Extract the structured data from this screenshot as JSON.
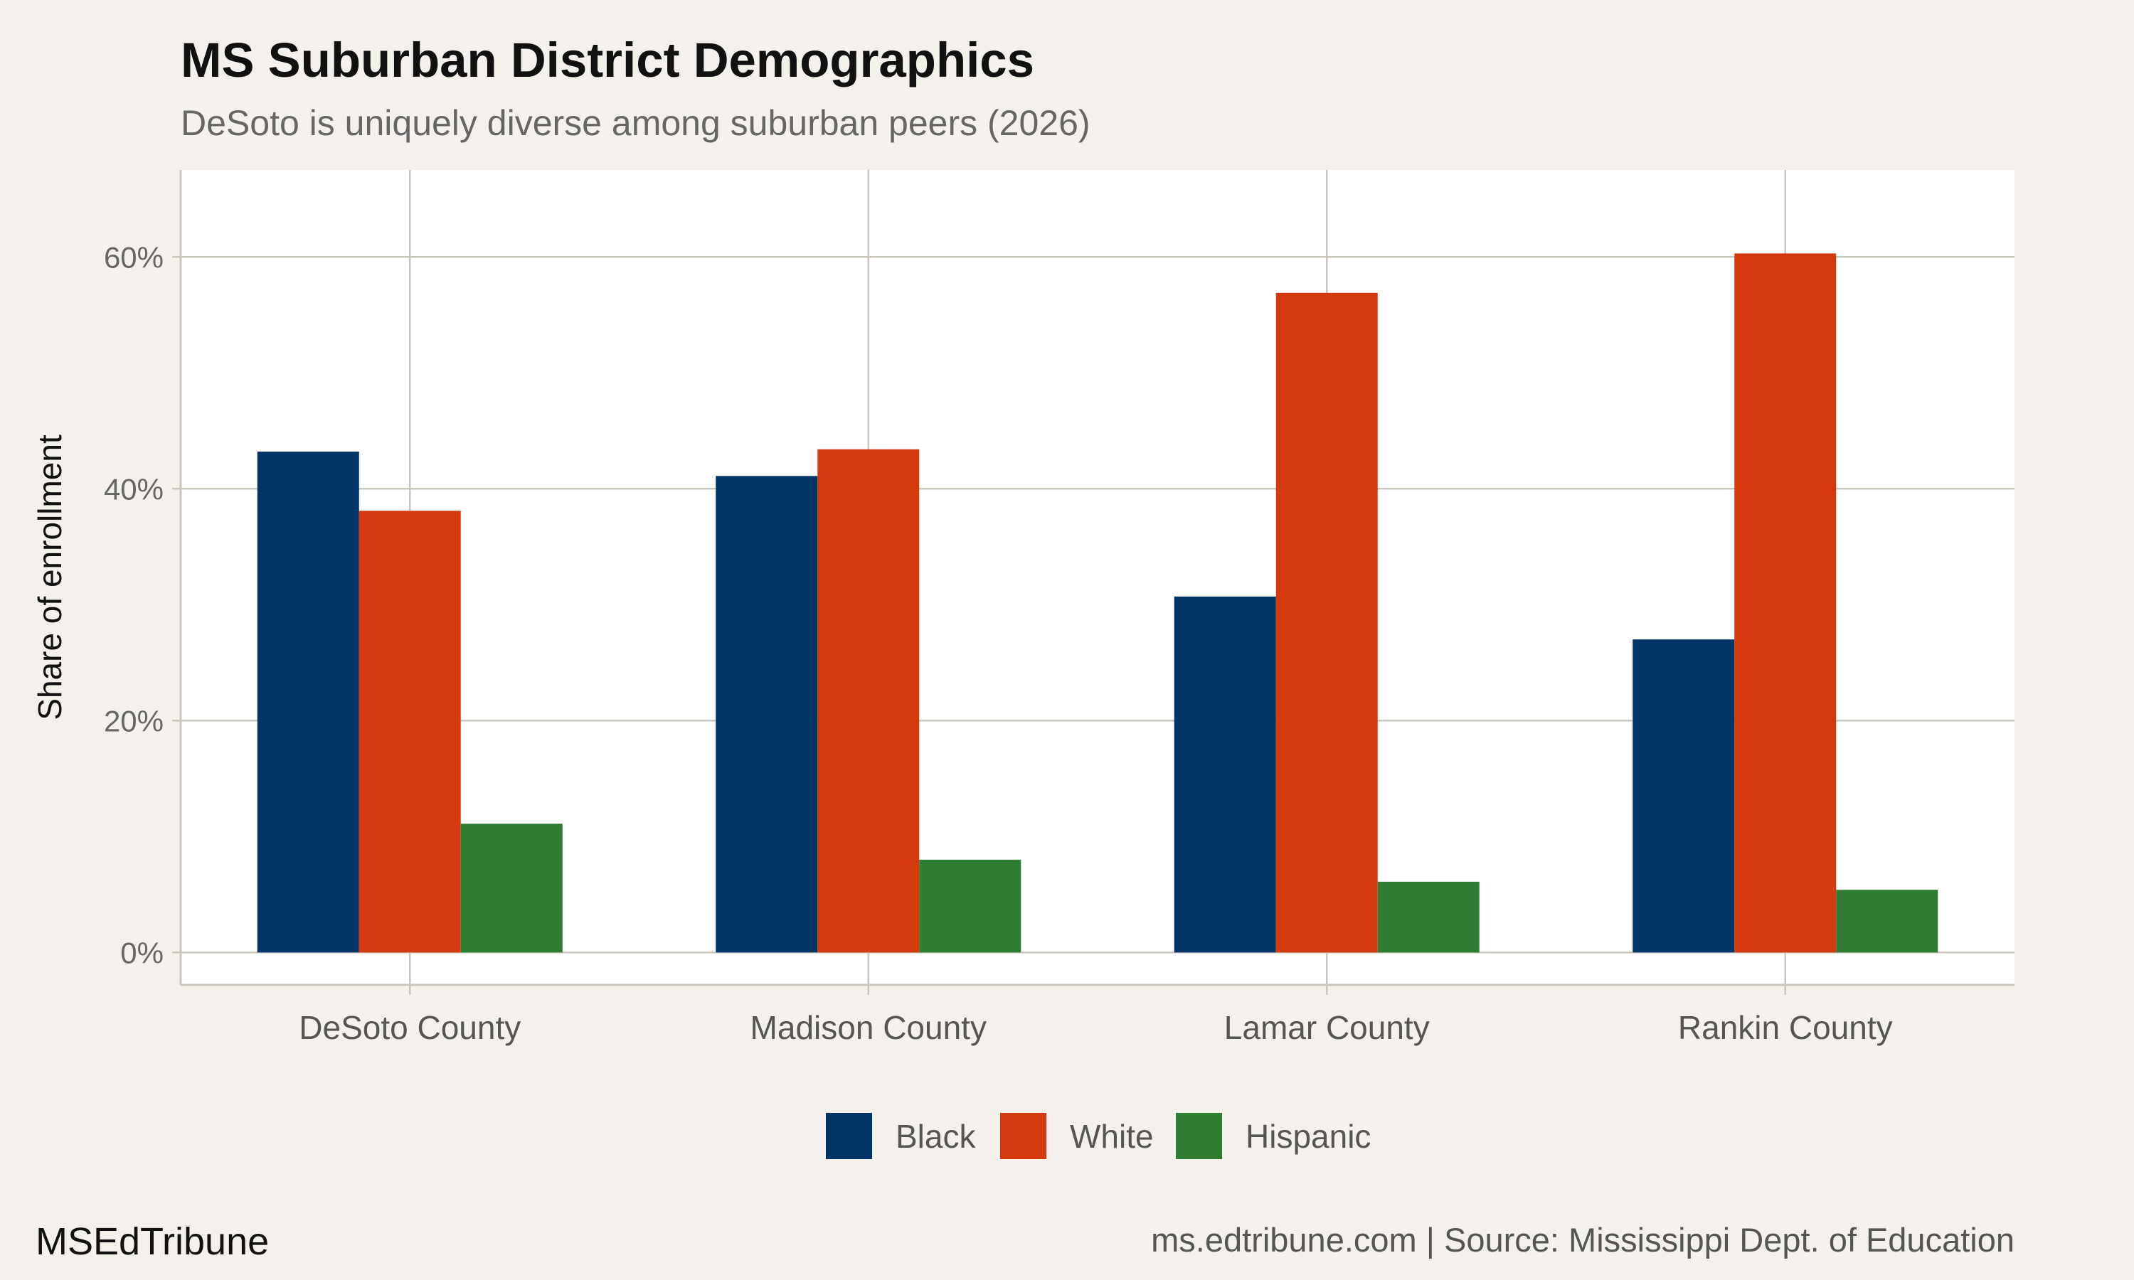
{
  "title": "MS Suburban District Demographics",
  "subtitle": "DeSoto is uniquely diverse among suburban peers (2026)",
  "brand": "MSEdTribune",
  "source": "ms.edtribune.com | Source: Mississippi Dept. of Education",
  "colors": {
    "background": "#f4f1ec",
    "panel": "#ffffff",
    "grid": "#cbc6bd",
    "Black": "#003366",
    "White": "#d4380d",
    "Hispanic": "#2e7d32"
  },
  "chart_data": {
    "type": "bar",
    "title": "MS Suburban District Demographics",
    "subtitle": "DeSoto is uniquely diverse among suburban peers (2026)",
    "xlabel": "",
    "ylabel": "Share of enrollment",
    "categories": [
      "DeSoto County",
      "Madison County",
      "Lamar County",
      "Rankin County"
    ],
    "series": [
      {
        "name": "Black",
        "values": [
          43.2,
          41.1,
          30.7,
          27.0
        ]
      },
      {
        "name": "White",
        "values": [
          38.1,
          43.4,
          56.9,
          60.3
        ]
      },
      {
        "name": "Hispanic",
        "values": [
          11.1,
          8.0,
          6.1,
          5.4
        ]
      }
    ],
    "yticks": [
      0,
      20,
      40,
      60
    ],
    "ytick_labels": [
      "0%",
      "20%",
      "40%",
      "60%"
    ],
    "ylim": [
      -2.8,
      67.5
    ],
    "grid": true,
    "legend_position": "bottom"
  }
}
